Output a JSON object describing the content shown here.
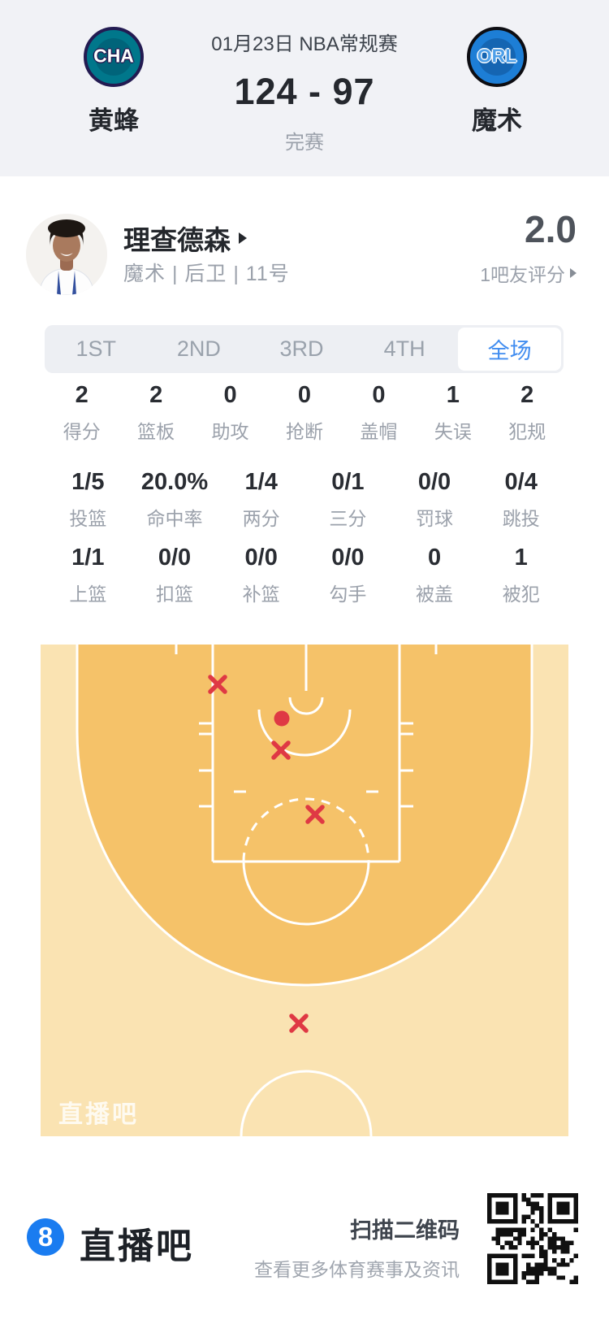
{
  "header": {
    "date": "01月23日 NBA常规赛",
    "score": "124 - 97",
    "status": "完赛",
    "home": {
      "abbr": "CHA",
      "name": "黄蜂"
    },
    "away": {
      "abbr": "ORL",
      "name": "魔术"
    }
  },
  "player": {
    "name": "理查德森",
    "meta": "魔术 | 后卫 | 11号",
    "rating": "2.0",
    "rating_label": "1吧友评分"
  },
  "tabs": [
    {
      "label": "1ST",
      "active": false
    },
    {
      "label": "2ND",
      "active": false
    },
    {
      "label": "3RD",
      "active": false
    },
    {
      "label": "4TH",
      "active": false
    },
    {
      "label": "全场",
      "active": true
    }
  ],
  "stats": {
    "rows": [
      [
        {
          "value": "2",
          "label": "得分"
        },
        {
          "value": "2",
          "label": "篮板"
        },
        {
          "value": "0",
          "label": "助攻"
        },
        {
          "value": "0",
          "label": "抢断"
        },
        {
          "value": "0",
          "label": "盖帽"
        },
        {
          "value": "1",
          "label": "失误"
        },
        {
          "value": "2",
          "label": "犯规"
        }
      ],
      [
        {
          "value": "1/5",
          "label": "投篮"
        },
        {
          "value": "20.0%",
          "label": "命中率"
        },
        {
          "value": "1/4",
          "label": "两分"
        },
        {
          "value": "0/1",
          "label": "三分"
        },
        {
          "value": "0/0",
          "label": "罚球"
        },
        {
          "value": "0/4",
          "label": "跳投"
        }
      ],
      [
        {
          "value": "1/1",
          "label": "上篮"
        },
        {
          "value": "0/0",
          "label": "扣篮"
        },
        {
          "value": "0/0",
          "label": "补篮"
        },
        {
          "value": "0/0",
          "label": "勾手"
        },
        {
          "value": "0",
          "label": "被盖"
        },
        {
          "value": "1",
          "label": "被犯"
        }
      ]
    ]
  },
  "court": {
    "watermark": "直播吧",
    "colors": {
      "inner": "#f5c269",
      "outer": "#fae3b2",
      "line": "#ffffff",
      "mark": "#df3944"
    }
  },
  "chart_data": {
    "type": "scatter",
    "title": "全场投篮分布（篮筐在上方，坐标为650x605球场内像素）",
    "series": [
      {
        "name": "命中",
        "symbol": "dot",
        "points": [
          {
            "x": 297,
            "y": 91
          }
        ]
      },
      {
        "name": "未命中",
        "symbol": "x",
        "points": [
          {
            "x": 218,
            "y": 49
          },
          {
            "x": 296,
            "y": 130
          },
          {
            "x": 338,
            "y": 209
          },
          {
            "x": 318,
            "y": 466
          }
        ]
      }
    ]
  },
  "footer": {
    "logo_glyph": "8",
    "brand": "直播吧",
    "scan_title": "扫描二维码",
    "scan_subtitle": "查看更多体育赛事及资讯"
  }
}
